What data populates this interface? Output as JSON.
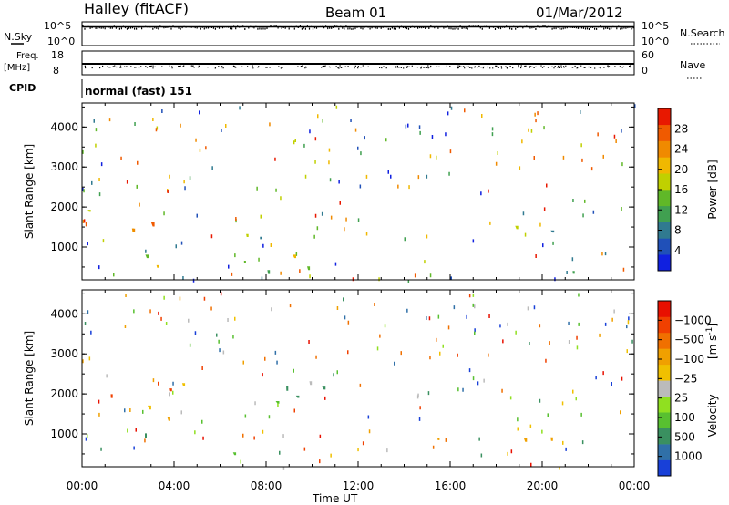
{
  "header": {
    "station": "Halley (fitACF)",
    "beam": "Beam 01",
    "date": "01/Mar/2012"
  },
  "top_panels": {
    "nsky": {
      "label": "N.Sky",
      "ticks": [
        "10^5",
        "10^0"
      ]
    },
    "nsearch": {
      "label": "N.Search",
      "ticks": [
        "10^5",
        "10^0"
      ]
    },
    "freq": {
      "label_line1": "Freq.",
      "label_line2": "[MHz]",
      "ticks": [
        "18",
        "8"
      ]
    },
    "nave": {
      "label": "Nave",
      "ticks": [
        "60",
        "0"
      ]
    },
    "cpid": {
      "label": "CPID",
      "value": "normal (fast) 151"
    }
  },
  "chart_data": [
    {
      "type": "heatmap",
      "title": "",
      "xlabel": "Time UT",
      "ylabel": "Slant Range [km]",
      "xlim": [
        0,
        24
      ],
      "ylim": [
        180,
        4600
      ],
      "x_ticks": [
        "00:00",
        "04:00",
        "08:00",
        "12:00",
        "16:00",
        "20:00",
        "00:00"
      ],
      "y_ticks": [
        "1000",
        "2000",
        "3000",
        "4000"
      ],
      "colorbar": {
        "label": "Power [dB]",
        "ticks": [
          "4",
          "8",
          "12",
          "16",
          "20",
          "24",
          "28"
        ],
        "colors": [
          "#1020e0",
          "#2050b8",
          "#307a90",
          "#40a050",
          "#60b828",
          "#c0d000",
          "#f0b800",
          "#f08a00",
          "#f05a00",
          "#e81800"
        ]
      },
      "echo_regions": [
        {
          "t": [
            0.0,
            4.5
          ],
          "r": [
            800,
            2300
          ],
          "level": "medium-high"
        },
        {
          "t": [
            2.0,
            5.0
          ],
          "r": [
            500,
            1100
          ],
          "level": "high"
        },
        {
          "t": [
            6.5,
            10.5
          ],
          "r": [
            400,
            2600
          ],
          "level": "medium"
        },
        {
          "t": [
            15.5,
            16.5
          ],
          "r": [
            900,
            1300
          ],
          "level": "low"
        },
        {
          "t": [
            18.5,
            21.5
          ],
          "r": [
            300,
            2000
          ],
          "level": "medium"
        },
        {
          "t": [
            19.0,
            23.0
          ],
          "r": [
            200,
            350
          ],
          "level": "very-high"
        }
      ]
    },
    {
      "type": "heatmap",
      "title": "",
      "xlabel": "Time UT",
      "ylabel": "Slant Range [km]",
      "xlim": [
        0,
        24
      ],
      "ylim": [
        180,
        4600
      ],
      "x_ticks": [
        "00:00",
        "04:00",
        "08:00",
        "12:00",
        "16:00",
        "20:00",
        "00:00"
      ],
      "y_ticks": [
        "1000",
        "2000",
        "3000",
        "4000"
      ],
      "colorbar": {
        "label": "Velocity",
        "label_unit": "[m s",
        "label_exp": "-1",
        "label_close": "]",
        "ticks": [
          "1000",
          "500",
          "100",
          "25",
          "−25",
          "−100",
          "−500",
          "−1000"
        ],
        "colors": [
          "#1840d8",
          "#3070a8",
          "#3a9060",
          "#58c030",
          "#90e020",
          "#bbbbbb",
          "#f0c000",
          "#f0a000",
          "#f07000",
          "#f04000",
          "#e81000"
        ]
      },
      "echo_regions": [
        {
          "t": [
            0.0,
            4.5
          ],
          "r": [
            800,
            2300
          ],
          "velocity": "negative"
        },
        {
          "t": [
            2.5,
            4.5
          ],
          "r": [
            800,
            1300
          ],
          "velocity": "positive-small"
        },
        {
          "t": [
            6.5,
            10.5
          ],
          "r": [
            400,
            2600
          ],
          "velocity": "positive-small"
        },
        {
          "t": [
            15.0,
            17.5
          ],
          "r": [
            400,
            1000
          ],
          "velocity": "negative"
        },
        {
          "t": [
            18.5,
            21.5
          ],
          "r": [
            600,
            1800
          ],
          "velocity": "negative"
        },
        {
          "t": [
            19.0,
            23.0
          ],
          "r": [
            200,
            350
          ],
          "velocity": "negative"
        }
      ]
    }
  ]
}
